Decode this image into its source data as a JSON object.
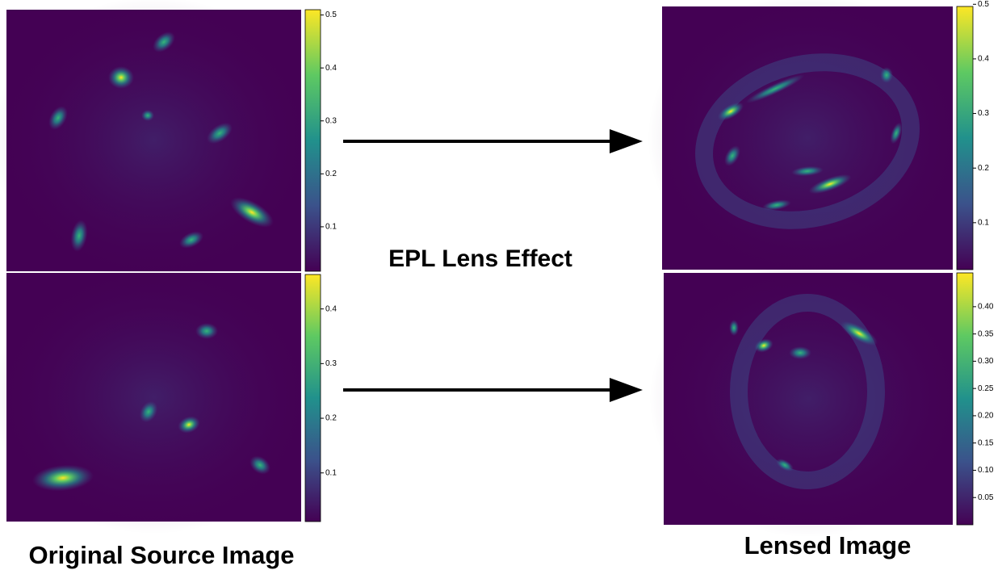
{
  "panels": [
    {
      "colorbar": {
        "lim": [
          0.016,
          0.51
        ],
        "ticks": [
          0.1,
          0.2,
          0.3,
          0.4,
          0.5
        ]
      }
    },
    {
      "colorbar": {
        "lim": [
          0.011,
          0.463
        ],
        "ticks": [
          0.1,
          0.2,
          0.3,
          0.4
        ]
      }
    },
    {
      "colorbar": {
        "lim": [
          0.014,
          0.496
        ],
        "ticks": [
          0.1,
          0.2,
          0.3,
          0.4,
          0.5
        ]
      }
    },
    {
      "colorbar": {
        "lim": [
          0.0,
          0.462
        ],
        "ticks": [
          0.05,
          {
            "value": 0.1,
            "label": "0.10"
          },
          0.15,
          {
            "value": 0.2,
            "label": "0.20"
          },
          0.25,
          {
            "value": 0.3,
            "label": "0.30"
          },
          0.35,
          {
            "value": 0.4,
            "label": "0.40"
          }
        ]
      }
    }
  ],
  "arrow_label": "EPL Lens Effect",
  "captions": {
    "left": "Original Source Image",
    "right": "Lensed Image"
  }
}
